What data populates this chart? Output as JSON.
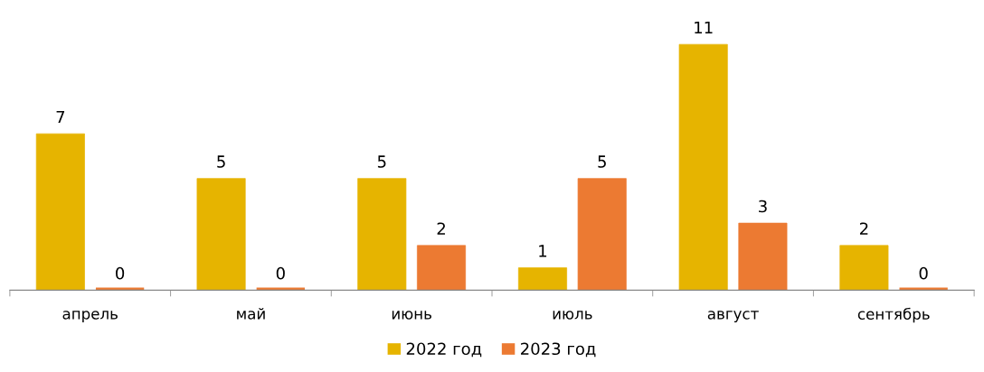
{
  "chart_data": {
    "type": "bar",
    "categories": [
      "апрель",
      "май",
      "июнь",
      "июль",
      "август",
      "сентябрь"
    ],
    "series": [
      {
        "name": "2022 год",
        "color": "#e6b400",
        "values": [
          7,
          5,
          5,
          1,
          11,
          2
        ]
      },
      {
        "name": "2023 год",
        "color": "#ec7a32",
        "values": [
          0,
          0,
          2,
          5,
          3,
          0
        ]
      }
    ],
    "data_labels": true,
    "legend": "bottom",
    "grid": false
  }
}
